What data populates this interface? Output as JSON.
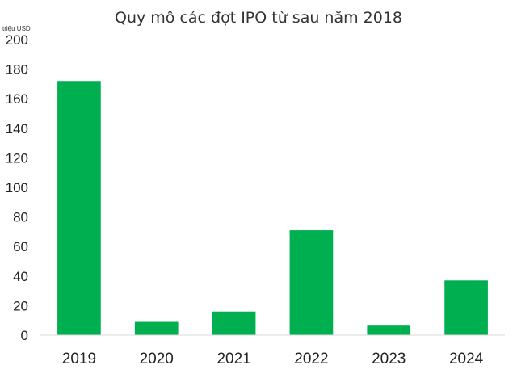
{
  "chart_data": {
    "type": "bar",
    "title": "Quy mô các đợt IPO từ sau năm 2018",
    "unit_label": "triệu USD",
    "xlabel": "",
    "ylabel": "",
    "categories": [
      "2019",
      "2020",
      "2021",
      "2022",
      "2023",
      "2024"
    ],
    "values": [
      172,
      9,
      16,
      71,
      7,
      37
    ],
    "ylim": [
      0,
      200
    ],
    "yticks": [
      "0",
      "20",
      "40",
      "60",
      "80",
      "100",
      "120",
      "140",
      "160",
      "180",
      "200"
    ],
    "grid": false,
    "legend": "none",
    "bar_color": "#00b050"
  }
}
